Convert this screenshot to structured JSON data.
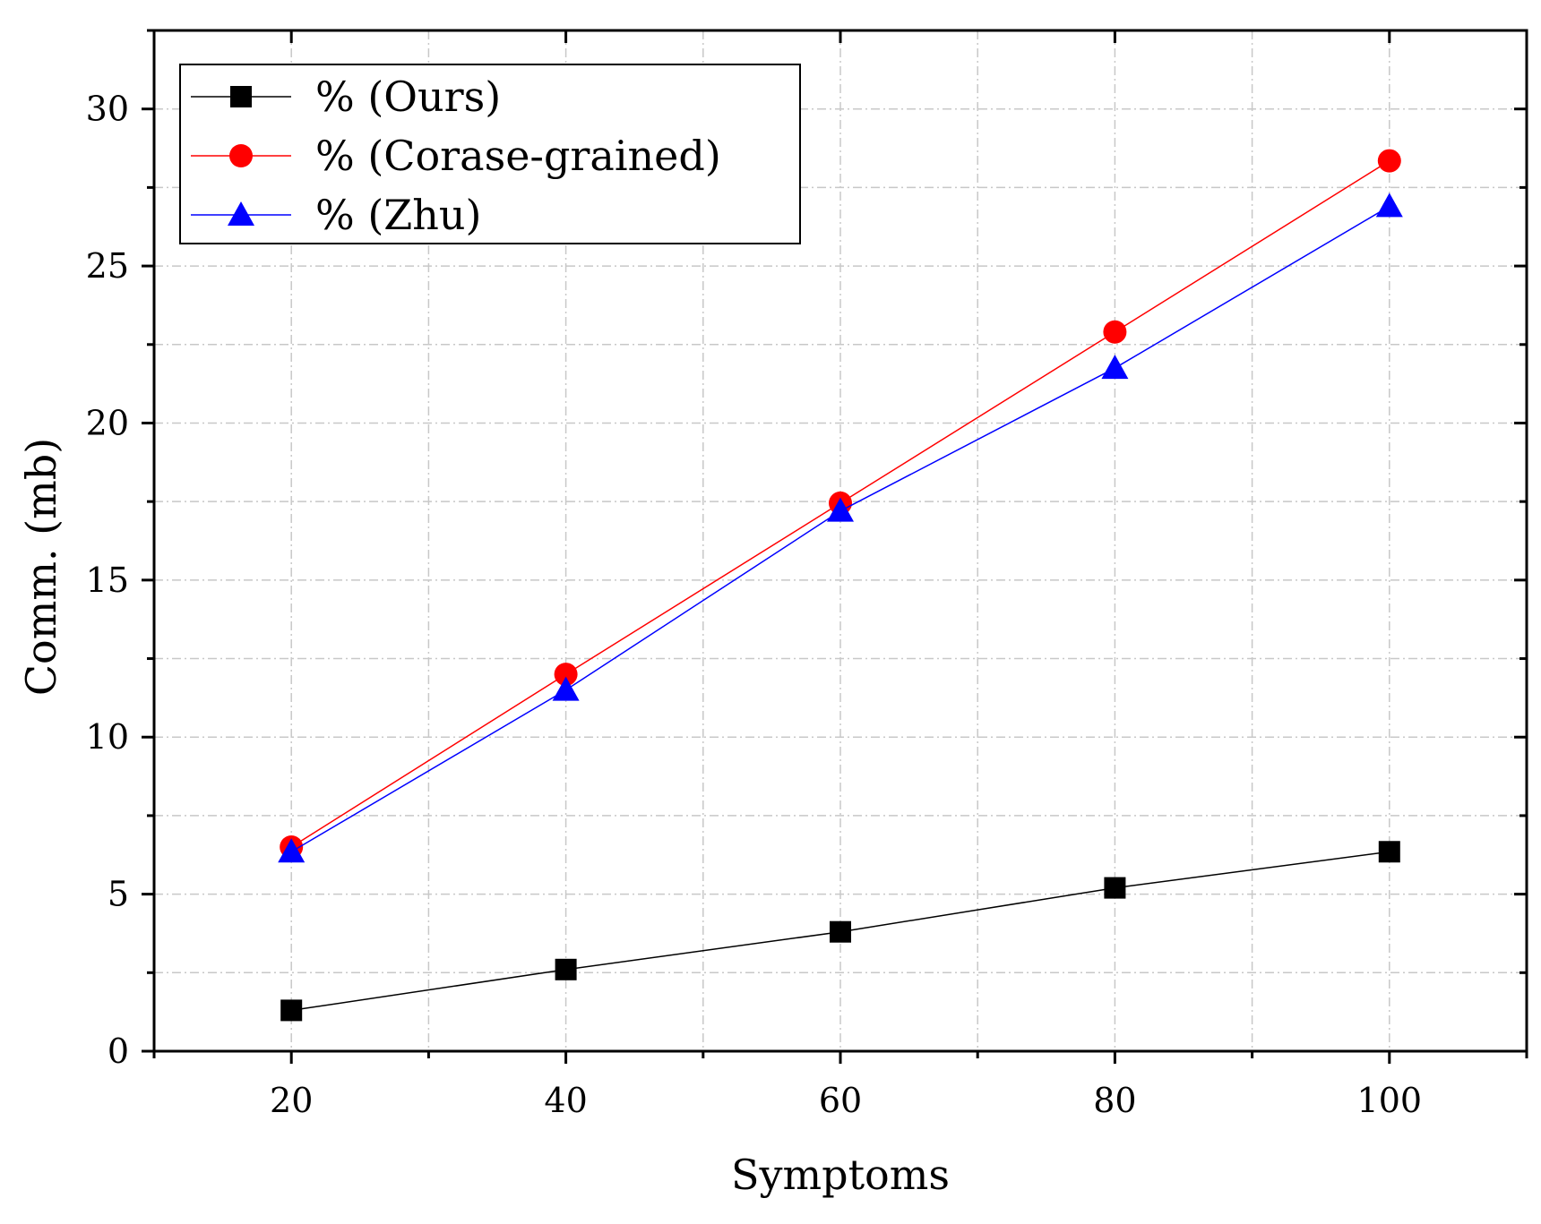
{
  "chart_data": {
    "type": "line",
    "title": "",
    "xlabel": "Symptoms",
    "ylabel": "Comm. (mb)",
    "xlim": [
      10,
      110
    ],
    "ylim": [
      0,
      32.5
    ],
    "xticks": [
      20,
      40,
      60,
      80,
      100
    ],
    "yticks": [
      0,
      5,
      10,
      15,
      20,
      25,
      30
    ],
    "grid": true,
    "legend_position": "top-left",
    "x": [
      20,
      40,
      60,
      80,
      100
    ],
    "series": [
      {
        "name": "% (Ours)",
        "values": [
          1.3,
          2.6,
          3.8,
          5.2,
          6.35
        ],
        "color": "#000000",
        "marker": "square"
      },
      {
        "name": "% (Corase-grained)",
        "values": [
          6.5,
          12.0,
          17.45,
          22.9,
          28.35
        ],
        "color": "#ff0000",
        "marker": "circle"
      },
      {
        "name": "% (Zhu)",
        "values": [
          6.35,
          11.5,
          17.2,
          21.75,
          26.9
        ],
        "color": "#0000ff",
        "marker": "triangle"
      }
    ]
  }
}
